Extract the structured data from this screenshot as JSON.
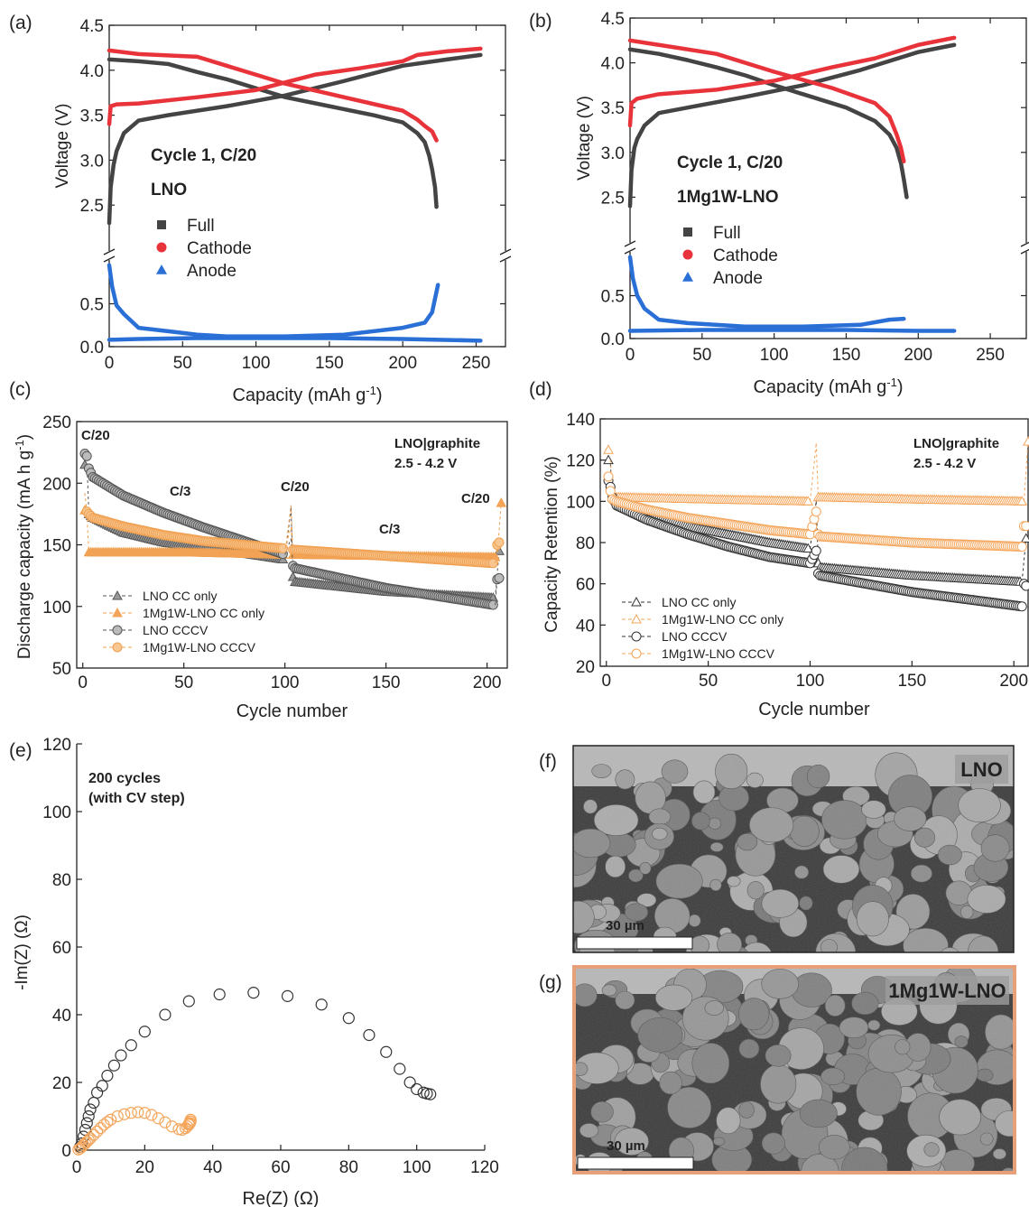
{
  "colors": {
    "full": "#444444",
    "cathode": "#e8333a",
    "anode": "#2a6fd6",
    "lno": "#777777",
    "mgw": "#f5a55a",
    "frame": "#222222"
  },
  "chart_data": [
    {
      "id": "a",
      "panel_label": "(a)",
      "type": "line",
      "xlabel": "Capacity (mAh g",
      "xlabel_sup": "-1",
      "ylabel": "Voltage (V)",
      "xlim": [
        0,
        270
      ],
      "ylim_upper": [
        2.0,
        4.5
      ],
      "ylim_lower": [
        0,
        1.0
      ],
      "x_ticks": [
        "0",
        "50",
        "100",
        "150",
        "200",
        "250"
      ],
      "y_ticks_upper": [
        "2.5",
        "3.0",
        "3.5",
        "4.0",
        "4.5"
      ],
      "y_ticks_lower": [
        "0.0",
        "0.5"
      ],
      "annotations": [
        "Cycle 1, C/20",
        "LNO"
      ],
      "legend": [
        "Full",
        "Cathode",
        "Anode"
      ],
      "series": [
        {
          "name": "Full",
          "segment": "charge",
          "x": [
            0,
            1,
            3,
            5,
            10,
            20,
            40,
            80,
            120,
            160,
            200,
            230,
            253
          ],
          "y": [
            2.3,
            2.7,
            2.95,
            3.1,
            3.3,
            3.44,
            3.5,
            3.6,
            3.72,
            3.88,
            4.05,
            4.12,
            4.17
          ]
        },
        {
          "name": "Full",
          "segment": "discharge",
          "x": [
            0,
            20,
            40,
            60,
            80,
            100,
            120,
            150,
            180,
            200,
            210,
            215,
            218,
            220,
            222,
            223
          ],
          "y": [
            4.12,
            4.1,
            4.07,
            3.98,
            3.9,
            3.8,
            3.7,
            3.6,
            3.5,
            3.42,
            3.3,
            3.2,
            3.05,
            2.9,
            2.7,
            2.48
          ]
        },
        {
          "name": "Cathode",
          "segment": "charge",
          "x": [
            0,
            1,
            5,
            20,
            60,
            100,
            140,
            170,
            200,
            210,
            230,
            253
          ],
          "y": [
            3.4,
            3.6,
            3.62,
            3.63,
            3.7,
            3.78,
            3.95,
            4.02,
            4.1,
            4.17,
            4.21,
            4.24
          ]
        },
        {
          "name": "Cathode",
          "segment": "discharge",
          "x": [
            0,
            20,
            60,
            80,
            100,
            120,
            160,
            200,
            210,
            215,
            220,
            223
          ],
          "y": [
            4.22,
            4.18,
            4.15,
            4.05,
            3.95,
            3.85,
            3.7,
            3.55,
            3.45,
            3.38,
            3.32,
            3.22
          ]
        },
        {
          "name": "Anode",
          "segment": "charge",
          "x": [
            0,
            2,
            5,
            10,
            20,
            40,
            60,
            80,
            120,
            160,
            200,
            215,
            220,
            224
          ],
          "y": [
            0.95,
            0.7,
            0.48,
            0.38,
            0.22,
            0.18,
            0.14,
            0.12,
            0.12,
            0.14,
            0.22,
            0.28,
            0.4,
            0.72
          ]
        },
        {
          "name": "Anode",
          "segment": "discharge",
          "x": [
            0,
            20,
            60,
            100,
            150,
            200,
            253
          ],
          "y": [
            0.08,
            0.09,
            0.1,
            0.1,
            0.1,
            0.09,
            0.07
          ]
        }
      ]
    },
    {
      "id": "b",
      "panel_label": "(b)",
      "type": "line",
      "xlabel": "Capacity (mAh g",
      "xlabel_sup": "-1",
      "ylabel": "Voltage (V)",
      "xlim": [
        0,
        275
      ],
      "ylim_upper": [
        2.0,
        4.5
      ],
      "ylim_lower": [
        0,
        1.0
      ],
      "x_ticks": [
        "0",
        "50",
        "100",
        "150",
        "200",
        "250"
      ],
      "y_ticks_upper": [
        "2.5",
        "3.0",
        "3.5",
        "4.0",
        "4.5"
      ],
      "y_ticks_lower": [
        "0.0",
        "0.5"
      ],
      "annotations": [
        "Cycle 1, C/20",
        "1Mg1W-LNO"
      ],
      "legend": [
        "Full",
        "Cathode",
        "Anode"
      ],
      "series": [
        {
          "name": "Full",
          "segment": "charge",
          "x": [
            0,
            1,
            3,
            5,
            10,
            20,
            40,
            80,
            120,
            160,
            200,
            225
          ],
          "y": [
            2.4,
            2.8,
            3.05,
            3.15,
            3.3,
            3.44,
            3.5,
            3.62,
            3.75,
            3.92,
            4.12,
            4.2
          ]
        },
        {
          "name": "Full",
          "segment": "discharge",
          "x": [
            0,
            20,
            40,
            60,
            80,
            100,
            120,
            150,
            170,
            180,
            185,
            188,
            190,
            192
          ],
          "y": [
            4.15,
            4.1,
            4.03,
            3.95,
            3.86,
            3.75,
            3.65,
            3.5,
            3.35,
            3.2,
            3.05,
            2.88,
            2.7,
            2.5
          ]
        },
        {
          "name": "Cathode",
          "segment": "charge",
          "x": [
            0,
            1,
            5,
            20,
            60,
            100,
            140,
            170,
            200,
            225
          ],
          "y": [
            3.3,
            3.55,
            3.6,
            3.65,
            3.7,
            3.8,
            3.95,
            4.05,
            4.2,
            4.28
          ]
        },
        {
          "name": "Cathode",
          "segment": "discharge",
          "x": [
            0,
            20,
            60,
            100,
            140,
            170,
            180,
            185,
            188,
            190
          ],
          "y": [
            4.25,
            4.2,
            4.1,
            3.9,
            3.72,
            3.55,
            3.4,
            3.2,
            3.05,
            2.9
          ]
        },
        {
          "name": "Anode",
          "segment": "charge",
          "x": [
            0,
            2,
            5,
            10,
            20,
            40,
            80,
            120,
            160,
            180,
            190
          ],
          "y": [
            0.95,
            0.7,
            0.5,
            0.35,
            0.22,
            0.18,
            0.14,
            0.14,
            0.16,
            0.22,
            0.23
          ]
        },
        {
          "name": "Anode",
          "segment": "discharge",
          "x": [
            0,
            50,
            100,
            150,
            200,
            225
          ],
          "y": [
            0.09,
            0.1,
            0.1,
            0.1,
            0.09,
            0.09
          ]
        }
      ]
    },
    {
      "id": "c",
      "panel_label": "(c)",
      "type": "scatter",
      "xlabel": "Cycle number",
      "ylabel": "Discharge capacity (mA h g",
      "ylabel_sup": "-1",
      "ylabel_end": ")",
      "xlim": [
        -3,
        210
      ],
      "ylim": [
        50,
        250
      ],
      "x_ticks": [
        "0",
        "50",
        "100",
        "150",
        "200"
      ],
      "y_ticks": [
        "50",
        "100",
        "150",
        "200",
        "250"
      ],
      "annotations": [
        "C/20",
        "C/3",
        "C/20",
        "C/3",
        "C/20",
        "LNO|graphite",
        "2.5 - 4.2 V"
      ],
      "legend": [
        "LNO CC only",
        "1Mg1W-LNO CC only",
        "LNO CCCV",
        "1Mg1W-LNO CCCV"
      ],
      "series": [
        {
          "name": "LNO CC only",
          "x": [
            1,
            2,
            3,
            5,
            20,
            40,
            60,
            80,
            100,
            103,
            104,
            105,
            150,
            204,
            206
          ],
          "y": [
            215,
            220,
            175,
            172,
            160,
            152,
            147,
            143,
            138,
            180,
            124,
            120,
            112,
            107,
            145
          ]
        },
        {
          "name": "1Mg1W-LNO CC only",
          "x": [
            1,
            2,
            3,
            5,
            50,
            100,
            103,
            104,
            105,
            150,
            205,
            207
          ],
          "y": [
            178,
            175,
            144,
            144,
            144,
            142,
            182,
            142,
            142,
            141,
            140,
            184
          ]
        },
        {
          "name": "LNO CCCV",
          "x": [
            1,
            2,
            3,
            5,
            20,
            40,
            60,
            80,
            100,
            103,
            104,
            105,
            150,
            204,
            205,
            206
          ],
          "y": [
            224,
            222,
            212,
            205,
            190,
            176,
            164,
            153,
            142,
            155,
            133,
            131,
            115,
            101,
            122,
            123
          ]
        },
        {
          "name": "1Mg1W-LNO CCCV",
          "x": [
            1,
            2,
            3,
            5,
            20,
            40,
            60,
            80,
            100,
            103,
            104,
            105,
            150,
            204,
            205,
            206
          ],
          "y": [
            192,
            177,
            175,
            172,
            165,
            158,
            153,
            150,
            147,
            164,
            146,
            146,
            141,
            135,
            150,
            152
          ]
        }
      ]
    },
    {
      "id": "d",
      "panel_label": "(d)",
      "type": "scatter",
      "xlabel": "Cycle number",
      "ylabel": "Capacity Retention (%)",
      "xlim": [
        -3,
        207
      ],
      "ylim": [
        20,
        140
      ],
      "x_ticks": [
        "0",
        "50",
        "100",
        "150",
        "200"
      ],
      "y_ticks": [
        "20",
        "40",
        "60",
        "80",
        "100",
        "120",
        "140"
      ],
      "annotations": [
        "LNO|graphite",
        "2.5 - 4.2 V"
      ],
      "legend": [
        "LNO CC only",
        "1Mg1W-LNO CC only",
        "LNO CCCV",
        "1Mg1W-LNO CCCV"
      ],
      "series": [
        {
          "name": "LNO CC only",
          "x": [
            1,
            2,
            3,
            5,
            20,
            40,
            60,
            80,
            100,
            103,
            104,
            105,
            150,
            204,
            206
          ],
          "y": [
            120,
            118,
            102,
            100,
            93,
            88,
            84,
            80,
            77,
            100,
            70,
            68,
            64,
            61,
            82
          ]
        },
        {
          "name": "1Mg1W-LNO CC only",
          "x": [
            1,
            2,
            3,
            5,
            50,
            100,
            103,
            104,
            105,
            150,
            205,
            207
          ],
          "y": [
            125,
            120,
            102,
            102,
            101,
            100,
            128,
            102,
            102,
            101,
            100,
            129
          ]
        },
        {
          "name": "LNO CCCV",
          "x": [
            1,
            2,
            3,
            5,
            20,
            40,
            60,
            80,
            100,
            103,
            104,
            105,
            150,
            204,
            205,
            206
          ],
          "y": [
            110,
            107,
            102,
            98,
            91,
            84,
            78,
            73,
            70,
            76,
            65,
            64,
            56,
            49,
            60,
            59
          ]
        },
        {
          "name": "1Mg1W-LNO CCCV",
          "x": [
            1,
            2,
            3,
            5,
            20,
            40,
            60,
            80,
            100,
            103,
            104,
            105,
            150,
            204,
            205,
            206
          ],
          "y": [
            112,
            105,
            101,
            100,
            96,
            92,
            89,
            86,
            84,
            95,
            84,
            83,
            80,
            78,
            88,
            88
          ]
        }
      ]
    },
    {
      "id": "e",
      "panel_label": "(e)",
      "type": "scatter",
      "xlabel": "Re(Z) (Ω)",
      "ylabel": "-Im(Z) (Ω)",
      "xlim": [
        0,
        120
      ],
      "ylim": [
        0,
        120
      ],
      "x_ticks": [
        "0",
        "20",
        "40",
        "60",
        "80",
        "100",
        "120"
      ],
      "y_ticks": [
        "0",
        "20",
        "40",
        "60",
        "80",
        "100",
        "120"
      ],
      "annotations": [
        "200 cycles",
        "(with CV step)"
      ],
      "series": [
        {
          "name": "LNO",
          "x": [
            1,
            1.5,
            2,
            2.5,
            3,
            3.5,
            4,
            5,
            6,
            7.5,
            9,
            11,
            13,
            16,
            20,
            26,
            33,
            42,
            52,
            62,
            72,
            80,
            86,
            91,
            95,
            98,
            100,
            102,
            103,
            104
          ],
          "y": [
            1,
            2,
            4,
            6,
            8,
            10,
            12,
            14,
            17,
            19,
            22,
            25,
            28,
            31,
            35,
            40,
            44,
            46,
            46.5,
            45.5,
            43,
            39,
            34,
            29,
            24,
            20,
            18,
            17,
            16.7,
            16.5
          ]
        },
        {
          "name": "1Mg1W-LNO",
          "x": [
            0.5,
            1,
            1.5,
            2,
            2.5,
            3,
            3.5,
            4,
            5,
            6,
            7,
            8,
            9,
            10,
            12,
            14,
            16,
            18,
            20,
            22,
            24,
            26,
            28,
            30,
            31,
            32,
            32.5,
            33,
            33.2,
            33.4,
            33.5,
            33.5,
            33.3,
            33
          ],
          "y": [
            0.2,
            0.5,
            1,
            1.5,
            2,
            2.5,
            3,
            3.5,
            4.5,
            5.5,
            6.5,
            7.5,
            8.3,
            9,
            10,
            10.6,
            11,
            11.2,
            11,
            10.4,
            9.4,
            8.2,
            7,
            6.2,
            6,
            6.5,
            7,
            7.5,
            8,
            8.5,
            9,
            8.5,
            8,
            7.8
          ]
        }
      ]
    }
  ],
  "sem": [
    {
      "id": "f",
      "panel_label": "(f)",
      "label": "LNO",
      "scale": "30 µm"
    },
    {
      "id": "g",
      "panel_label": "(g)",
      "label": "1Mg1W-LNO",
      "scale": "30 µm"
    }
  ]
}
